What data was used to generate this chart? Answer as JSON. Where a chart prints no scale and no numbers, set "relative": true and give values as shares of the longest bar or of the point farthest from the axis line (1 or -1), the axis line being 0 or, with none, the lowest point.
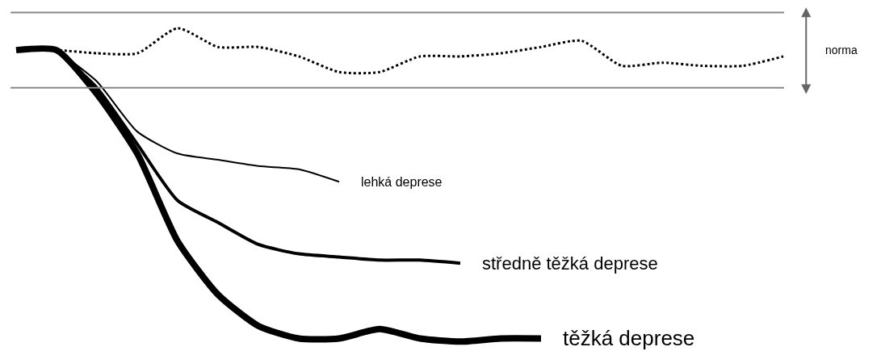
{
  "chart_data": {
    "type": "line",
    "relative": true,
    "legend": false,
    "categories": [
      null,
      null,
      null,
      null,
      null,
      null,
      null,
      null,
      null,
      null,
      null,
      null,
      null,
      null,
      null,
      null,
      null,
      null,
      null,
      null
    ],
    "series": [
      {
        "color": "#000000",
        "line_style": "dotted",
        "values": [
          0.93,
          0.93,
          0.92,
          0.92,
          1.0,
          0.94,
          0.94,
          0.91,
          0.86,
          0.86,
          0.91,
          0.91,
          0.92,
          0.94,
          0.96,
          0.88,
          0.89,
          0.88,
          0.88,
          0.91
        ]
      },
      {
        "name": "lehká deprese",
        "color": "#000000",
        "line_style": "solid",
        "values": [
          null,
          0.93,
          0.83,
          0.67,
          0.6,
          0.58,
          0.56,
          0.55,
          0.51,
          null,
          null,
          null,
          null,
          null,
          null,
          null,
          null,
          null,
          null,
          null
        ]
      },
      {
        "name": "středně těžká deprese",
        "color": "#000000",
        "line_style": "solid",
        "values": [
          null,
          0.93,
          0.81,
          0.63,
          0.45,
          0.38,
          0.31,
          0.28,
          0.27,
          0.26,
          0.26,
          0.25,
          null,
          null,
          null,
          null,
          null,
          null,
          null,
          null
        ]
      },
      {
        "name": "těžká deprese",
        "color": "#000000",
        "line_style": "solid",
        "values": [
          0.93,
          0.93,
          0.79,
          0.6,
          0.32,
          0.15,
          0.05,
          0.01,
          0.01,
          0.04,
          0.01,
          0.0,
          0.01,
          0.01,
          null,
          null,
          null,
          null,
          null,
          null
        ]
      }
    ],
    "ref_lines": [
      {
        "axis": "y",
        "value": 1.05,
        "color": "#888888"
      },
      {
        "axis": "y",
        "value": 0.81,
        "color": "#888888"
      }
    ],
    "annotations": [
      "norma"
    ]
  }
}
